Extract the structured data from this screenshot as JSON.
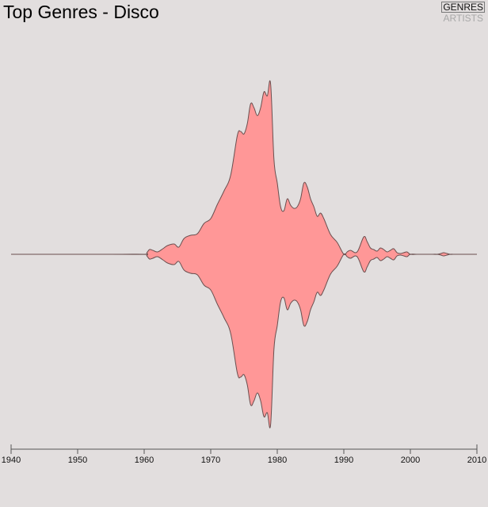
{
  "chart_data": {
    "type": "area",
    "title": "Top Genres - Disco",
    "xlabel": "",
    "ylabel": "",
    "xlim": [
      1940,
      2010
    ],
    "xticks": [
      "1940",
      "1950",
      "1960",
      "1970",
      "1980",
      "1990",
      "2000",
      "2010"
    ],
    "series": [
      {
        "x": [
          1940,
          1955,
          1960,
          1960.4,
          1960.8,
          1961.3,
          1962,
          1962.8,
          1963.5,
          1964.5,
          1965.2,
          1966,
          1967,
          1968,
          1969,
          1970,
          1971,
          1972,
          1973,
          1974,
          1974.5,
          1975,
          1975.5,
          1976,
          1976.5,
          1977,
          1977.5,
          1978,
          1978.5,
          1979,
          1979.5,
          1980,
          1980.5,
          1981,
          1981.5,
          1982,
          1982.5,
          1983,
          1983.5,
          1984,
          1984.5,
          1985,
          1985.5,
          1986,
          1986.5,
          1987,
          1988,
          1989,
          1990,
          1990.5,
          1991,
          1992,
          1993,
          1993.5,
          1994,
          1994.5,
          1995,
          1995.5,
          1996,
          1996.5,
          1997,
          1997.5,
          1998,
          1998.5,
          1999,
          1999.5,
          2000,
          2001,
          2002,
          2003,
          2004,
          2004.6,
          2005,
          2005.5,
          2006,
          2007,
          2010
        ],
        "values": [
          0,
          0,
          0,
          2,
          6,
          5,
          3,
          7,
          11,
          13,
          9,
          20,
          24,
          26,
          39,
          45,
          63,
          80,
          100,
          150,
          155,
          152,
          165,
          190,
          185,
          175,
          185,
          205,
          200,
          215,
          120,
          90,
          60,
          55,
          70,
          62,
          58,
          60,
          70,
          90,
          85,
          70,
          60,
          48,
          52,
          45,
          25,
          15,
          0,
          3,
          5,
          3,
          22,
          16,
          8,
          6,
          4,
          8,
          6,
          3,
          5,
          7,
          2,
          1,
          2,
          3,
          0,
          0,
          0,
          0,
          0,
          1,
          2,
          1,
          0,
          0,
          0
        ]
      }
    ],
    "colors": {
      "fill": "#ff9797",
      "stroke": "#6a4f4f",
      "axis": "#555555"
    }
  },
  "toggle": {
    "genres_label": "GENRES",
    "artists_label": "ARTISTS"
  }
}
